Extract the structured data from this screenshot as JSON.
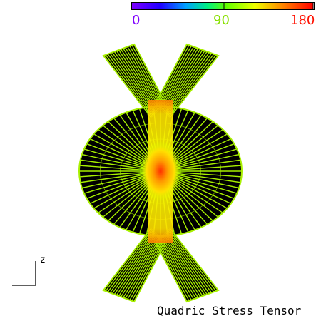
{
  "colorbar": {
    "labels": [
      {
        "text": "0",
        "color": "#8000ff"
      },
      {
        "text": "90",
        "color": "#88e000"
      },
      {
        "text": "180",
        "color": "#ff1000"
      }
    ]
  },
  "axes": {
    "z_label": "z"
  },
  "caption": "Quadric Stress Tensor",
  "colors": {
    "background": "#ffffff",
    "glyph_fill": "#000000",
    "glyph_outline": "#a8f000",
    "hot_core": "#ff3a00"
  }
}
